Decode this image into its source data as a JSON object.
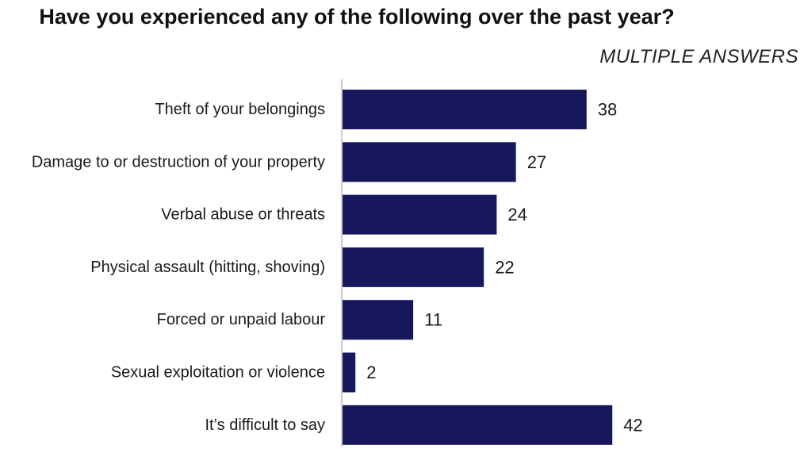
{
  "chart_data": {
    "type": "bar",
    "orientation": "horizontal",
    "title": "Have you experienced any of the following over the past year?",
    "subtitle": "MULTIPLE ANSWERS",
    "categories": [
      "Theft of your belongings",
      "Damage to or destruction of your property",
      "Verbal abuse or threats",
      "Physical assault (hitting, shoving)",
      "Forced or unpaid labour",
      "Sexual exploitation or violence",
      "It’s difficult to say"
    ],
    "values": [
      38,
      27,
      24,
      22,
      11,
      2,
      42
    ],
    "xlim": [
      0,
      48
    ],
    "grid": false,
    "legend": "none",
    "colors": {
      "bar": "#17175e",
      "axis": "#bbbbbb"
    }
  }
}
